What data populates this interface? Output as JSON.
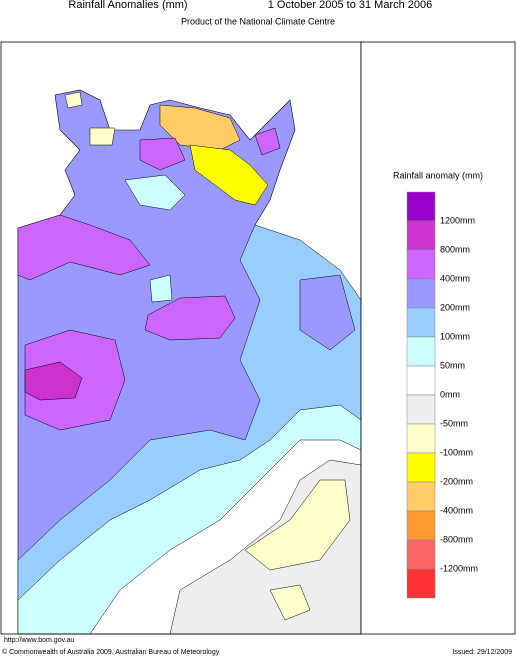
{
  "header": {
    "title": "Rainfall Anomalies (mm)",
    "period": "1 October 2005 to 31 March 2006",
    "subtitle": "Product of the National Climate Centre"
  },
  "legend": {
    "title": "Rainfall anomaly (mm)",
    "labels": [
      "1200mm",
      "800mm",
      "400mm",
      "200mm",
      "100mm",
      "50mm",
      "0mm",
      "-50mm",
      "-100mm",
      "-200mm",
      "-400mm",
      "-800mm",
      "-1200mm"
    ],
    "colors": [
      "#9900cc",
      "#cc33cc",
      "#cc66ff",
      "#9999ff",
      "#99ccff",
      "#ccffff",
      "#ffffff",
      "#eeeeee",
      "#ffffcc",
      "#ffff00",
      "#ffcc66",
      "#ff9933",
      "#ff6666",
      "#ff3333"
    ]
  },
  "footer": {
    "url": "http://www.bom.gov.au",
    "copyright": "© Commonwealth of Australia 2009, Australian Bureau of Meteorology",
    "issued": "Issued: 29/12/2009"
  }
}
